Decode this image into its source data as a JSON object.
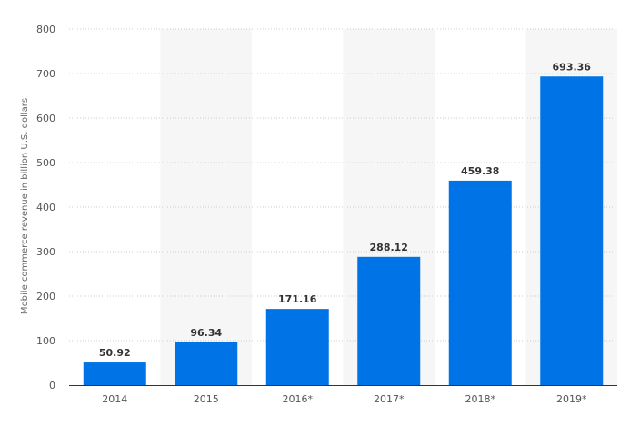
{
  "chart_data": {
    "type": "bar",
    "categories": [
      "2014",
      "2015",
      "2016*",
      "2017*",
      "2018*",
      "2019*"
    ],
    "values": [
      50.92,
      96.34,
      171.16,
      288.12,
      459.38,
      693.36
    ],
    "value_labels": [
      "50.92",
      "96.34",
      "171.16",
      "288.12",
      "459.38",
      "693.36"
    ],
    "title": "",
    "xlabel": "",
    "ylabel": "Mobile commerce revenue in billion U.S. dollars",
    "ylim": [
      0,
      800
    ],
    "yticks": [
      0,
      100,
      200,
      300,
      400,
      500,
      600,
      700,
      800
    ],
    "grid": "horizontal-dotted",
    "bar_color": "#0073e6",
    "band_color": "#f6f6f6"
  }
}
